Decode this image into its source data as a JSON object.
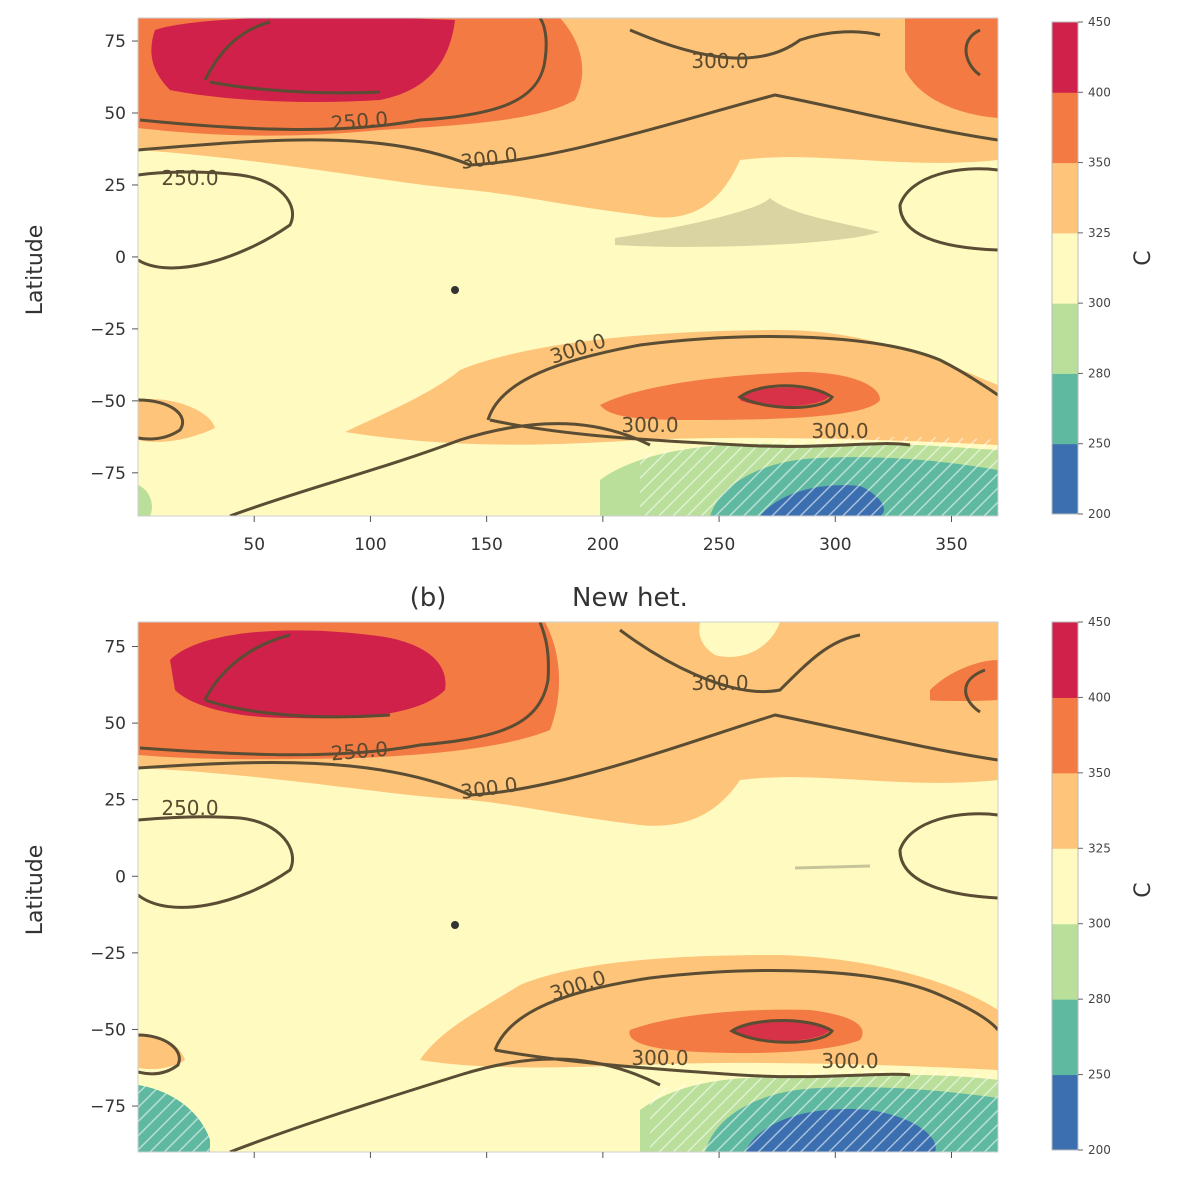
{
  "colors": {
    "levels": [
      "#3b6fb0",
      "#5fb9a0",
      "#b9df9a",
      "#fffbc0",
      "#fdc47a",
      "#f47a44",
      "#cf2149"
    ],
    "contour": "#5a4d33",
    "hatch_light": "#ffffff",
    "hatch_dark": "#4a6a3c"
  },
  "chart_data": [
    {
      "type": "heatmap",
      "panel": "a",
      "title": "",
      "xlabel": "",
      "ylabel": "Latitude",
      "xlim": [
        0,
        370
      ],
      "ylim": [
        -90,
        83
      ],
      "xticks": [
        "50",
        "100",
        "150",
        "200",
        "250",
        "300",
        "350"
      ],
      "yticks": [
        "75",
        "50",
        "25",
        "0",
        "−25",
        "−50",
        "−75"
      ],
      "colorbar": {
        "label": "C",
        "ticks": [
          "200",
          "250",
          "280",
          "300",
          "325",
          "350",
          "400",
          "450"
        ]
      },
      "contour_labels": [
        "300.0",
        "250.0",
        "300.0",
        "250.0",
        "300.0",
        "300.0",
        "300.0"
      ]
    },
    {
      "type": "heatmap",
      "panel": "b",
      "title": "New het.",
      "panel_label": "(b)",
      "xlabel": "",
      "ylabel": "Latitude",
      "xlim": [
        0,
        370
      ],
      "ylim": [
        -90,
        83
      ],
      "yticks": [
        "75",
        "50",
        "25",
        "0",
        "−25",
        "−50",
        "−75"
      ],
      "colorbar": {
        "label": "C",
        "ticks": [
          "200",
          "250",
          "280",
          "300",
          "325",
          "350",
          "400",
          "450"
        ]
      },
      "contour_labels": [
        "300.0",
        "250.0",
        "300.0",
        "250.0",
        "300.0",
        "300.0",
        "300.0"
      ]
    }
  ]
}
